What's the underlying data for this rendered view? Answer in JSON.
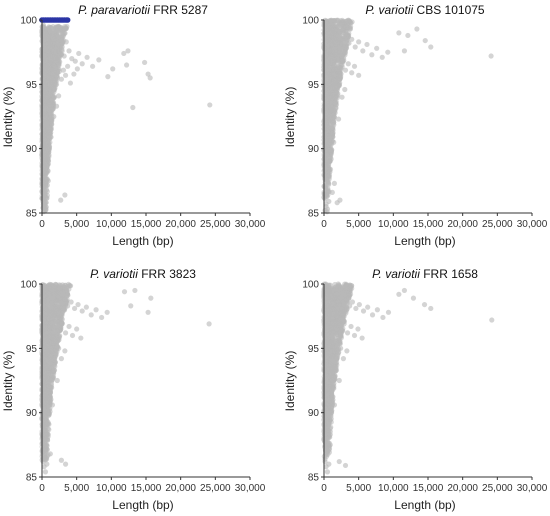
{
  "chart_data": [
    {
      "type": "scatter",
      "title_species": "P. paravariotii",
      "title_strain": "FRR 5287",
      "xlabel": "Length (bp)",
      "ylabel": "Identity (%)",
      "xlim": [
        0,
        30000
      ],
      "ylim": [
        85,
        100
      ],
      "xticks": [
        0,
        5000,
        10000,
        15000,
        20000,
        25000,
        30000
      ],
      "xtick_labels": [
        "0",
        "5,000",
        "10,000",
        "15,000",
        "20,000",
        "25,000",
        "30,000"
      ],
      "yticks": [
        85,
        90,
        95,
        100
      ],
      "ytick_labels": [
        "85",
        "90",
        "95",
        "100"
      ],
      "series": [
        {
          "color": "#b8b8b8",
          "x": [
            200,
            350,
            500,
            700,
            900,
            1100,
            1300,
            1500,
            1700,
            1900,
            2100,
            2300,
            2600,
            2900,
            3200,
            3500,
            3900,
            4300,
            4800,
            5300,
            5800,
            6500,
            7300,
            8200,
            600,
            800,
            1000,
            1200,
            1400,
            1600,
            1800,
            2000,
            2200,
            2500,
            2800,
            3100,
            3400,
            3700,
            4100,
            4600,
            5100,
            400,
            600,
            800,
            1000,
            1200,
            1500,
            1800,
            2100,
            2400,
            300,
            500,
            700,
            900,
            1100,
            1400,
            1700,
            300,
            450,
            600,
            800,
            1000,
            1300,
            250,
            400,
            550,
            700,
            900,
            200,
            350,
            500,
            650,
            200,
            300,
            450,
            600,
            150,
            250,
            400,
            550,
            300,
            450,
            9500,
            10200,
            11800,
            12400,
            13100,
            14800,
            15300,
            12200,
            15600,
            24200,
            2700,
            3300
          ],
          "y": [
            99.6,
            99.3,
            99.0,
            98.8,
            98.5,
            98.2,
            98.0,
            97.8,
            97.5,
            97.3,
            97.8,
            98.1,
            97.4,
            97.9,
            97.2,
            98.3,
            97.6,
            97.0,
            96.8,
            97.4,
            96.6,
            97.1,
            96.4,
            96.9,
            96.8,
            96.5,
            96.2,
            95.8,
            95.5,
            95.2,
            95.9,
            96.3,
            95.6,
            96.0,
            95.4,
            96.1,
            95.7,
            96.4,
            95.1,
            95.8,
            96.2,
            95.0,
            94.5,
            94.0,
            93.6,
            94.2,
            93.8,
            94.6,
            93.3,
            94.1,
            93.0,
            92.4,
            92.0,
            91.6,
            92.8,
            91.9,
            92.5,
            91.0,
            90.4,
            89.8,
            90.6,
            89.5,
            90.9,
            89.0,
            88.4,
            87.8,
            88.6,
            87.5,
            87.0,
            86.5,
            86.2,
            86.8,
            86.1,
            85.5,
            85.2,
            85.8,
            85.4,
            85.1,
            85.6,
            85.3,
            88.1,
            89.2,
            95.6,
            96.2,
            97.4,
            97.6,
            93.2,
            96.7,
            95.8,
            96.5,
            95.5,
            93.4,
            86.0,
            86.4
          ],
          "dense_region": {
            "x_max": 3000,
            "y_min": 85,
            "y_max": 99.5
          }
        },
        {
          "color": "#2b35a5",
          "x": [
            0,
            250,
            500,
            750,
            1000,
            1250,
            1500,
            1750,
            2000,
            2250,
            2500,
            2750,
            3000,
            3250,
            3500,
            3700
          ],
          "y": [
            100,
            100,
            100,
            100,
            100,
            100,
            100,
            100,
            100,
            100,
            100,
            100,
            100,
            100,
            100,
            100
          ]
        }
      ]
    },
    {
      "type": "scatter",
      "title_species": "P. variotii",
      "title_strain": "CBS 101075",
      "xlabel": "Length (bp)",
      "ylabel": "Identity (%)",
      "xlim": [
        0,
        30000
      ],
      "ylim": [
        85,
        100
      ],
      "xticks": [
        0,
        5000,
        10000,
        15000,
        20000,
        25000,
        30000
      ],
      "xtick_labels": [
        "0",
        "5,000",
        "10,000",
        "15,000",
        "20,000",
        "25,000",
        "30,000"
      ],
      "yticks": [
        85,
        90,
        95,
        100
      ],
      "ytick_labels": [
        "85",
        "90",
        "95",
        "100"
      ],
      "series": [
        {
          "color": "#b8b8b8",
          "x": [
            300,
            600,
            900,
            1200,
            1500,
            1800,
            2100,
            2400,
            2800,
            3200,
            3600,
            4000,
            4500,
            5000,
            5600,
            6200,
            6900,
            7600,
            8400,
            9200,
            700,
            1000,
            1300,
            1600,
            1900,
            2300,
            2700,
            3100,
            3500,
            4000,
            4400,
            5000,
            500,
            800,
            1100,
            1400,
            1800,
            2200,
            2600,
            3000,
            400,
            700,
            1000,
            1300,
            1700,
            2100,
            300,
            550,
            800,
            1100,
            1400,
            250,
            450,
            700,
            950,
            200,
            400,
            600,
            850,
            200,
            350,
            550,
            150,
            300,
            500,
            700,
            150,
            300,
            450,
            1200,
            1500,
            1900,
            2300,
            10800,
            12100,
            14600,
            15400,
            24100,
            11600,
            13400
          ],
          "y": [
            99.8,
            99.6,
            99.4,
            99.2,
            99.0,
            98.8,
            98.6,
            98.9,
            98.4,
            98.7,
            98.2,
            98.5,
            97.9,
            98.3,
            97.6,
            98.1,
            97.3,
            97.8,
            97.1,
            97.5,
            97.6,
            97.2,
            96.9,
            96.5,
            97.0,
            96.3,
            96.8,
            96.1,
            96.6,
            95.9,
            96.4,
            95.7,
            95.6,
            95.1,
            94.7,
            95.3,
            94.4,
            94.9,
            94.0,
            94.6,
            94.2,
            93.5,
            93.0,
            92.6,
            93.2,
            92.3,
            92.0,
            91.4,
            90.8,
            91.6,
            90.5,
            90.2,
            89.6,
            89.0,
            89.9,
            88.5,
            87.9,
            87.4,
            88.2,
            87.0,
            86.5,
            86.9,
            86.1,
            85.7,
            85.3,
            85.9,
            85.2,
            85.5,
            85.1,
            86.6,
            87.3,
            85.8,
            86.0,
            99.0,
            98.8,
            98.4,
            97.9,
            97.2,
            97.6,
            99.3
          ],
          "dense_region": {
            "x_max": 3500,
            "y_min": 86,
            "y_max": 100
          }
        }
      ]
    },
    {
      "type": "scatter",
      "title_species": "P. variotii",
      "title_strain": "FRR 3823",
      "xlabel": "Length (bp)",
      "ylabel": "Identity (%)",
      "xlim": [
        0,
        30000
      ],
      "ylim": [
        85,
        100
      ],
      "xticks": [
        0,
        5000,
        10000,
        15000,
        20000,
        25000,
        30000
      ],
      "xtick_labels": [
        "0",
        "5,000",
        "10,000",
        "15,000",
        "20,000",
        "25,000",
        "30,000"
      ],
      "yticks": [
        85,
        90,
        95,
        100
      ],
      "ytick_labels": [
        "85",
        "90",
        "95",
        "100"
      ],
      "series": [
        {
          "color": "#b8b8b8",
          "x": [
            300,
            600,
            900,
            1200,
            1500,
            1800,
            2100,
            2500,
            2900,
            3300,
            3700,
            4200,
            4700,
            5200,
            5800,
            6400,
            7100,
            7800,
            8600,
            9400,
            700,
            1000,
            1300,
            1700,
            2100,
            2500,
            2900,
            3400,
            3900,
            4400,
            5000,
            5600,
            500,
            800,
            1200,
            1600,
            2000,
            2400,
            2800,
            3300,
            400,
            700,
            1000,
            1400,
            1800,
            2200,
            300,
            550,
            800,
            1100,
            1500,
            250,
            450,
            700,
            1000,
            200,
            400,
            650,
            900,
            200,
            350,
            550,
            150,
            300,
            500,
            700,
            1200,
            2800,
            3400,
            11900,
            12800,
            15300,
            15700,
            24100,
            13400
          ],
          "y": [
            99.8,
            99.5,
            99.3,
            99.1,
            98.9,
            99.2,
            98.7,
            98.9,
            98.5,
            98.8,
            98.3,
            98.6,
            98.1,
            98.4,
            97.9,
            98.2,
            97.6,
            98.0,
            97.4,
            97.8,
            97.7,
            97.3,
            97.0,
            96.6,
            97.1,
            96.4,
            96.9,
            96.2,
            96.7,
            96.0,
            96.5,
            95.8,
            95.7,
            95.2,
            94.8,
            95.4,
            94.5,
            95.0,
            94.2,
            94.8,
            94.3,
            93.6,
            93.1,
            92.7,
            93.3,
            92.5,
            92.1,
            91.5,
            90.9,
            91.7,
            90.6,
            90.3,
            89.7,
            89.1,
            90.0,
            88.6,
            88.0,
            87.5,
            88.3,
            87.1,
            86.6,
            87.0,
            86.2,
            85.8,
            85.4,
            86.0,
            86.8,
            86.3,
            86.0,
            99.4,
            98.3,
            97.8,
            98.9,
            96.9,
            99.5
          ],
          "dense_region": {
            "x_max": 3500,
            "y_min": 86,
            "y_max": 100
          }
        }
      ]
    },
    {
      "type": "scatter",
      "title_species": "P. variotii",
      "title_strain": "FRR 1658",
      "xlabel": "Length (bp)",
      "ylabel": "Identity (%)",
      "xlim": [
        0,
        30000
      ],
      "ylim": [
        85,
        100
      ],
      "xticks": [
        0,
        5000,
        10000,
        15000,
        20000,
        25000,
        30000
      ],
      "xtick_labels": [
        "0",
        "5,000",
        "10,000",
        "15,000",
        "20,000",
        "25,000",
        "30,000"
      ],
      "yticks": [
        85,
        90,
        95,
        100
      ],
      "ytick_labels": [
        "85",
        "90",
        "95",
        "100"
      ],
      "series": [
        {
          "color": "#b8b8b8",
          "x": [
            300,
            600,
            900,
            1200,
            1500,
            1800,
            2100,
            2500,
            2900,
            3300,
            3700,
            4100,
            4600,
            5100,
            5700,
            6300,
            7000,
            7700,
            8500,
            9300,
            700,
            1000,
            1300,
            1700,
            2100,
            2500,
            2900,
            3400,
            3900,
            4400,
            4900,
            5500,
            500,
            800,
            1200,
            1600,
            2000,
            2400,
            2800,
            3300,
            400,
            700,
            1000,
            1400,
            1800,
            2200,
            300,
            550,
            800,
            1100,
            1500,
            250,
            450,
            700,
            1000,
            200,
            400,
            650,
            900,
            200,
            350,
            550,
            150,
            300,
            500,
            700,
            2200,
            3100,
            10800,
            12900,
            14500,
            15400,
            24200,
            11600
          ],
          "y": [
            99.8,
            99.5,
            99.3,
            99.1,
            98.9,
            99.2,
            98.7,
            98.9,
            98.5,
            98.8,
            98.3,
            98.6,
            98.1,
            98.4,
            97.9,
            98.2,
            97.6,
            98.0,
            97.4,
            97.8,
            97.7,
            97.3,
            97.0,
            96.6,
            97.1,
            96.4,
            96.9,
            96.2,
            96.7,
            96.0,
            96.5,
            95.8,
            95.7,
            95.2,
            94.8,
            95.4,
            94.5,
            95.0,
            94.2,
            94.8,
            94.3,
            93.6,
            93.1,
            92.7,
            93.3,
            92.5,
            92.1,
            91.5,
            90.9,
            91.7,
            90.6,
            90.3,
            89.7,
            89.1,
            90.0,
            88.6,
            88.0,
            87.5,
            88.3,
            87.1,
            86.6,
            87.0,
            86.2,
            85.8,
            85.4,
            86.0,
            86.2,
            85.9,
            99.2,
            98.9,
            98.4,
            98.1,
            97.2,
            99.5
          ],
          "dense_region": {
            "x_max": 3500,
            "y_min": 86,
            "y_max": 100
          }
        }
      ]
    }
  ]
}
